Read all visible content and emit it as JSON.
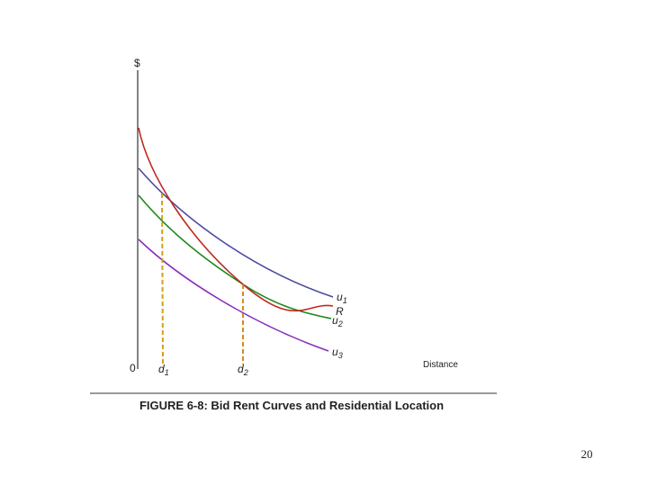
{
  "axis_labels": {
    "y": "$",
    "origin": "0",
    "x": "Distance"
  },
  "points": [
    {
      "main": "d",
      "sub": "1"
    },
    {
      "main": "d",
      "sub": "2"
    }
  ],
  "curves": [
    {
      "main": "u",
      "sub": "1"
    },
    {
      "main": "R"
    },
    {
      "main": "u",
      "sub": "2"
    },
    {
      "main": "u",
      "sub": "3"
    }
  ],
  "caption": "FIGURE 6-8:  Bid Rent Curves and Residential Location",
  "page_number": "20"
}
